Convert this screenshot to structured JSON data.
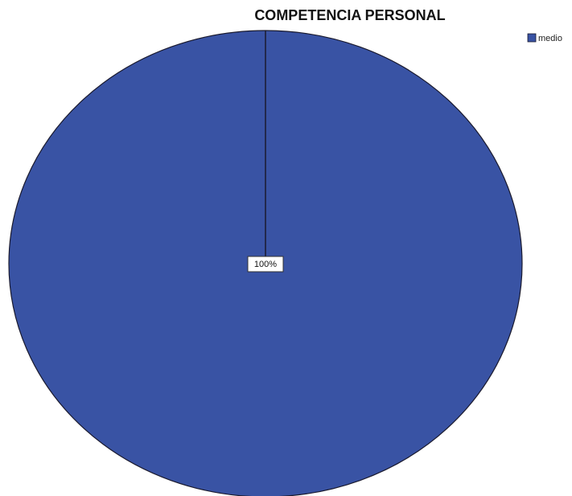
{
  "chart_data": {
    "type": "pie",
    "title": "COMPETENCIA PERSONAL",
    "categories": [
      "medio"
    ],
    "values": [
      100
    ],
    "data_labels": [
      "100%"
    ],
    "colors": [
      "#3953a4"
    ],
    "legend": {
      "placement": "top-right",
      "entries": [
        "medio"
      ]
    }
  }
}
